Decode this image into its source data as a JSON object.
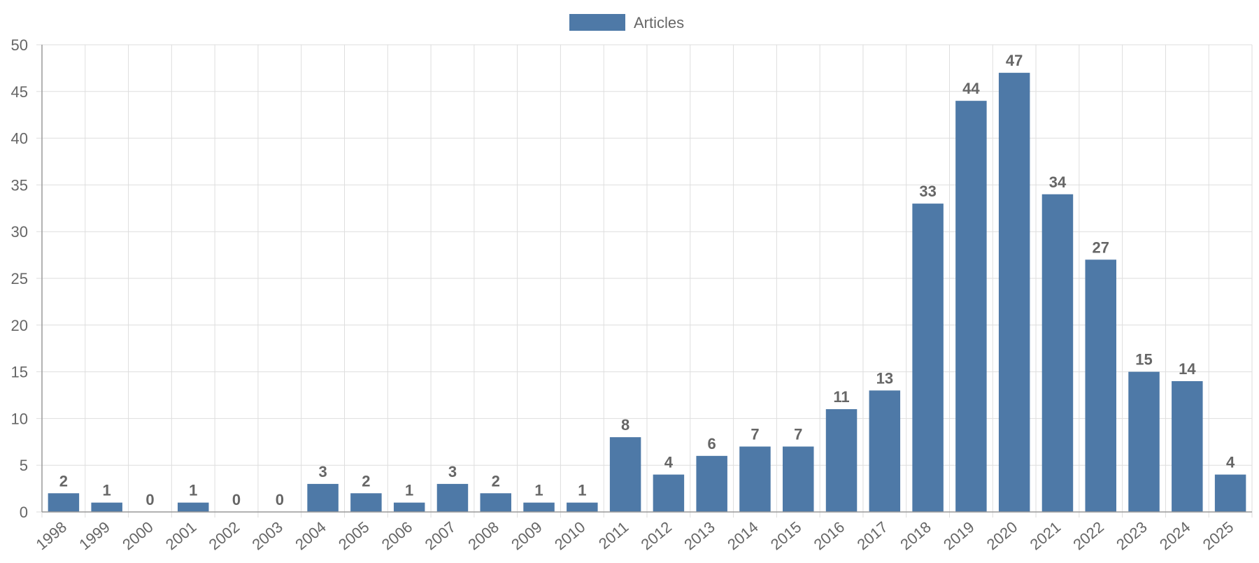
{
  "chart_data": {
    "type": "bar",
    "legend": {
      "position": "top-center",
      "entries": [
        "Articles"
      ]
    },
    "categories": [
      "1998",
      "1999",
      "2000",
      "2001",
      "2002",
      "2003",
      "2004",
      "2005",
      "2006",
      "2007",
      "2008",
      "2009",
      "2010",
      "2011",
      "2012",
      "2013",
      "2014",
      "2015",
      "2016",
      "2017",
      "2018",
      "2019",
      "2020",
      "2021",
      "2022",
      "2023",
      "2024",
      "2025"
    ],
    "series": [
      {
        "name": "Articles",
        "color": "#4e79a7",
        "values": [
          2,
          1,
          0,
          1,
          0,
          0,
          3,
          2,
          1,
          3,
          2,
          1,
          1,
          8,
          4,
          6,
          7,
          7,
          11,
          13,
          33,
          44,
          47,
          34,
          27,
          15,
          14,
          4
        ]
      }
    ],
    "ylim": [
      0,
      50
    ],
    "yticks": [
      0,
      5,
      10,
      15,
      20,
      25,
      30,
      35,
      40,
      45,
      50
    ],
    "grid": true,
    "data_labels": true,
    "xtick_rotation": "diagonal"
  }
}
